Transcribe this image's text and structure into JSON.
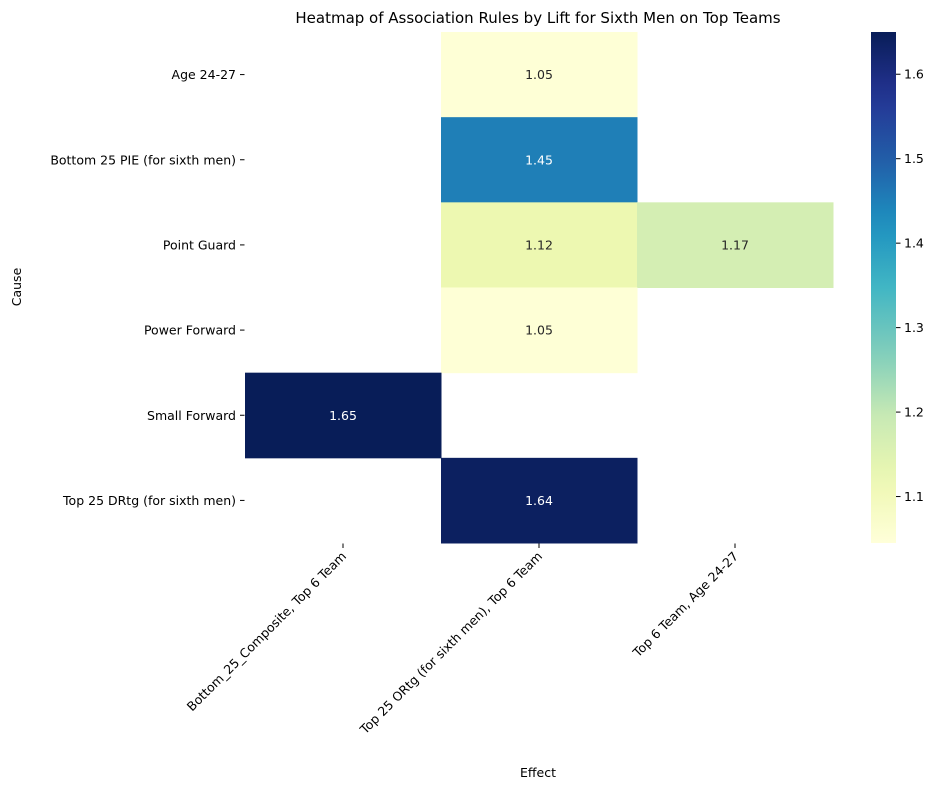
{
  "chart_data": {
    "type": "heatmap",
    "title": "Heatmap of Association Rules by Lift for Sixth Men on Top Teams",
    "xlabel": "Effect",
    "ylabel": "Cause",
    "rows": [
      "Age 24-27",
      "Bottom 25 PIE (for sixth men)",
      "Point Guard",
      "Power Forward",
      "Small Forward",
      "Top 25 DRtg (for sixth men)"
    ],
    "columns": [
      "Bottom_25_Composite, Top 6 Team",
      "Top 25 ORtg (for sixth men), Top 6 Team",
      "Top 6 Team, Age 24-27"
    ],
    "values": [
      [
        null,
        1.05,
        null
      ],
      [
        null,
        1.45,
        null
      ],
      [
        null,
        1.12,
        1.17
      ],
      [
        null,
        1.05,
        null
      ],
      [
        1.65,
        null,
        null
      ],
      [
        null,
        1.64,
        null
      ]
    ],
    "value_labels": [
      [
        null,
        "1.05",
        null
      ],
      [
        null,
        "1.45",
        null
      ],
      [
        null,
        "1.12",
        "1.17"
      ],
      [
        null,
        "1.05",
        null
      ],
      [
        "1.65",
        null,
        null
      ],
      [
        null,
        "1.64",
        null
      ]
    ],
    "colormap": "YlGnBu",
    "vmin": 1.045,
    "vmax": 1.65,
    "colorbar_ticks": [
      1.1,
      1.2,
      1.3,
      1.4,
      1.5,
      1.6
    ],
    "colorbar_tick_labels": [
      "1.1",
      "1.2",
      "1.3",
      "1.4",
      "1.5",
      "1.6"
    ],
    "grid": false
  }
}
